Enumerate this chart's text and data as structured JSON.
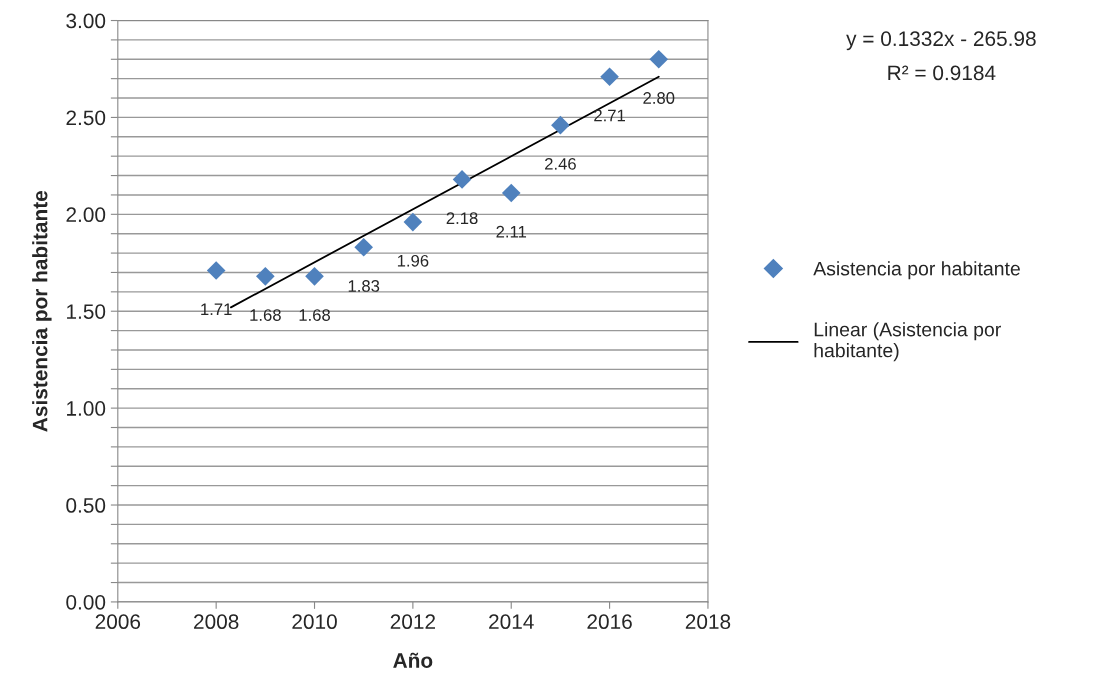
{
  "chart_data": {
    "type": "scatter",
    "xlabel": "Año",
    "ylabel": "Asistencia por habitante",
    "x": [
      2008,
      2009,
      2010,
      2011,
      2012,
      2013,
      2014,
      2015,
      2016,
      2017
    ],
    "series": [
      {
        "name": "Asistencia por habitante",
        "color": "#4f81bd",
        "marker": "diamond",
        "values": [
          1.71,
          1.68,
          1.68,
          1.83,
          1.96,
          2.18,
          2.11,
          2.46,
          2.71,
          2.8
        ],
        "value_labels": [
          "1.71",
          "1.68",
          "1.68",
          "1.83",
          "1.96",
          "2.18",
          "2.11",
          "2.46",
          "2.71",
          "2.80"
        ]
      },
      {
        "name": "Linear (Asistencia por habitante)",
        "type": "line",
        "color": "#000000",
        "marker": "none",
        "line_style": "solid",
        "x": [
          2008.3,
          2017
        ],
        "values": [
          1.52,
          2.71
        ]
      }
    ],
    "xlim": [
      2006,
      2018
    ],
    "xticks": [
      2006,
      2008,
      2010,
      2012,
      2014,
      2016,
      2018
    ],
    "ylim": [
      0,
      3
    ],
    "yticks": [
      {
        "value": 0,
        "label": "0.00"
      },
      {
        "value": 0.1,
        "label": null
      },
      {
        "value": 0.2,
        "label": null
      },
      {
        "value": 0.3,
        "label": null
      },
      {
        "value": 0.4,
        "label": null
      },
      {
        "value": 0.5,
        "label": "0.50"
      },
      {
        "value": 0.6,
        "label": null
      },
      {
        "value": 0.7,
        "label": null
      },
      {
        "value": 0.8,
        "label": null
      },
      {
        "value": 0.9,
        "label": null
      },
      {
        "value": 1.0,
        "label": "1.00"
      },
      {
        "value": 1.1,
        "label": null
      },
      {
        "value": 1.2,
        "label": null
      },
      {
        "value": 1.3,
        "label": null
      },
      {
        "value": 1.4,
        "label": null
      },
      {
        "value": 1.5,
        "label": "1.50"
      },
      {
        "value": 1.6,
        "label": null
      },
      {
        "value": 1.7,
        "label": null
      },
      {
        "value": 1.8,
        "label": null
      },
      {
        "value": 1.9,
        "label": null
      },
      {
        "value": 2.0,
        "label": "2.00"
      },
      {
        "value": 2.1,
        "label": null
      },
      {
        "value": 2.2,
        "label": null
      },
      {
        "value": 2.3,
        "label": null
      },
      {
        "value": 2.4,
        "label": null
      },
      {
        "value": 2.5,
        "label": "2.50"
      },
      {
        "value": 2.6,
        "label": null
      },
      {
        "value": 2.7,
        "label": null
      },
      {
        "value": 2.8,
        "label": null
      },
      {
        "value": 2.9,
        "label": null
      },
      {
        "value": 3.0,
        "label": "3.00"
      }
    ],
    "grid": "y",
    "legend": "right",
    "annotations": [
      "y = 0.1332x - 265.98",
      "R² = 0.9184"
    ]
  }
}
